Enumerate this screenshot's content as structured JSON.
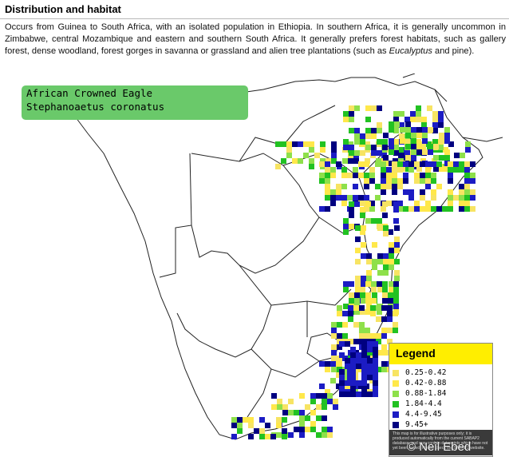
{
  "section": {
    "heading": "Distribution and habitat",
    "paragraph_part1": "Occurs from Guinea to South Africa, with an isolated population in Ethiopia. In southern Africa, it is generally uncommon in Zimbabwe, central Mozambique and eastern and southern South Africa. It generally prefers forest habitats, such as gallery forest, dense woodland, forest gorges in savanna or grassland and alien tree plantations (such as ",
    "paragraph_italic": "Eucalyptus",
    "paragraph_part2": " and pine)."
  },
  "map": {
    "species_common": "African Crowned Eagle",
    "species_scientific": "Stephanoaetus coronatus",
    "box_color": "#6ac96a",
    "legend": {
      "title": "Legend",
      "title_bg": "#ffee00",
      "entries": [
        {
          "label": "0.25-0.42",
          "color": "#f7e463"
        },
        {
          "label": "0.42-0.88",
          "color": "#ffe84a"
        },
        {
          "label": "0.88-1.84",
          "color": "#8ee04a"
        },
        {
          "label": "1.84-4.4",
          "color": "#22c222"
        },
        {
          "label": "4.4-9.45",
          "color": "#1c1cc4"
        },
        {
          "label": "9.45+",
          "color": "#000080"
        }
      ],
      "note": "This map is for illustrative purposes only; it is produced automatically from the current SABAP2 database, and may contain datapoints which have not yet been vetted. Please check the SABAP2 website."
    },
    "watermark": "© Neil Ebed"
  }
}
